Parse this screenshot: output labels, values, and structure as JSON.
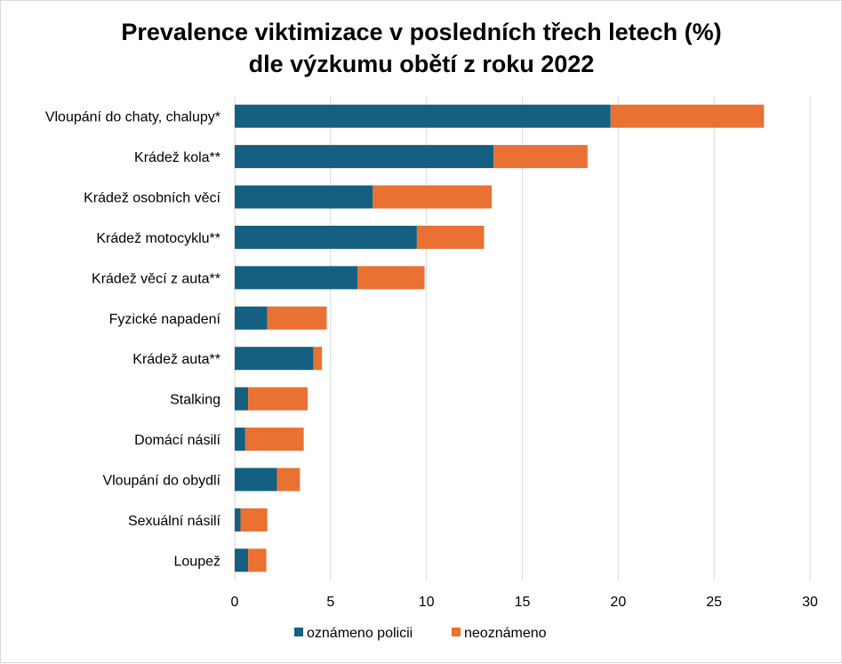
{
  "chart_data": {
    "type": "bar",
    "orientation": "horizontal",
    "stacked": true,
    "title_lines": [
      "Prevalence viktimizace v posledních třech letech (%)",
      "dle výzkumu obětí z roku 2022"
    ],
    "xlabel": "",
    "ylabel": "",
    "categories": [
      "Vloupání do chaty, chalupy*",
      "Krádež kola**",
      "Krádež osobních věcí",
      "Krádež motocyklu**",
      "Krádež věcí z auta**",
      "Fyzické napadení",
      "Krádež auta**",
      "Stalking",
      "Domácí násilí",
      "Vloupání do obydlí",
      "Sexuální násilí",
      "Loupež"
    ],
    "series": [
      {
        "name": "oznámeno policii",
        "color": "#156082",
        "values": [
          19.6,
          13.5,
          7.2,
          9.5,
          6.4,
          1.7,
          4.1,
          0.7,
          0.55,
          2.2,
          0.3,
          0.7
        ]
      },
      {
        "name": "neoznámeno",
        "color": "#E97132",
        "values": [
          8.0,
          4.9,
          6.2,
          3.5,
          3.5,
          3.1,
          0.45,
          3.1,
          3.05,
          1.2,
          1.4,
          0.95
        ]
      }
    ],
    "xlim": [
      0,
      30
    ],
    "xticks": [
      0,
      5,
      10,
      15,
      20,
      25,
      30
    ],
    "grid": "vertical",
    "legend_position": "bottom"
  }
}
